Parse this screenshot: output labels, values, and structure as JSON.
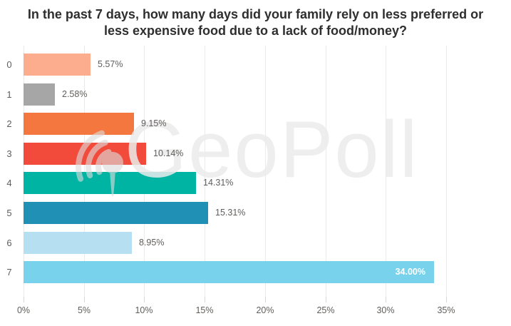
{
  "chart_data": {
    "type": "bar",
    "orientation": "horizontal",
    "title": "In the past 7 days, how many days did your family rely on less preferred or less expensive food due to a lack of food/money?",
    "categories": [
      "0",
      "1",
      "2",
      "3",
      "4",
      "5",
      "6",
      "7"
    ],
    "values": [
      5.57,
      2.58,
      9.15,
      10.14,
      14.31,
      15.31,
      8.95,
      34.0
    ],
    "value_labels": [
      "5.57%",
      "2.58%",
      "9.15%",
      "10.14%",
      "14.31%",
      "15.31%",
      "8.95%",
      "34.00%"
    ],
    "bar_colors": [
      "#FBAD8E",
      "#A6A6A6",
      "#F4773F",
      "#F24B3C",
      "#00B4A4",
      "#2090B4",
      "#B6DFF2",
      "#79D2EB"
    ],
    "x_tick_labels": [
      "0%",
      "5%",
      "10%",
      "15%",
      "20%",
      "25%",
      "30%",
      "35%"
    ],
    "x_tick_values": [
      0,
      5,
      10,
      15,
      20,
      25,
      30,
      35
    ],
    "xlim": [
      0,
      35
    ],
    "grid": "vertical",
    "legend": "none",
    "label_colors": {
      "outside": "#605e5c",
      "inside": "#ffffff"
    }
  },
  "watermark": {
    "text": "GeoPoll",
    "icon": "geopoll-signal-pin-icon"
  }
}
